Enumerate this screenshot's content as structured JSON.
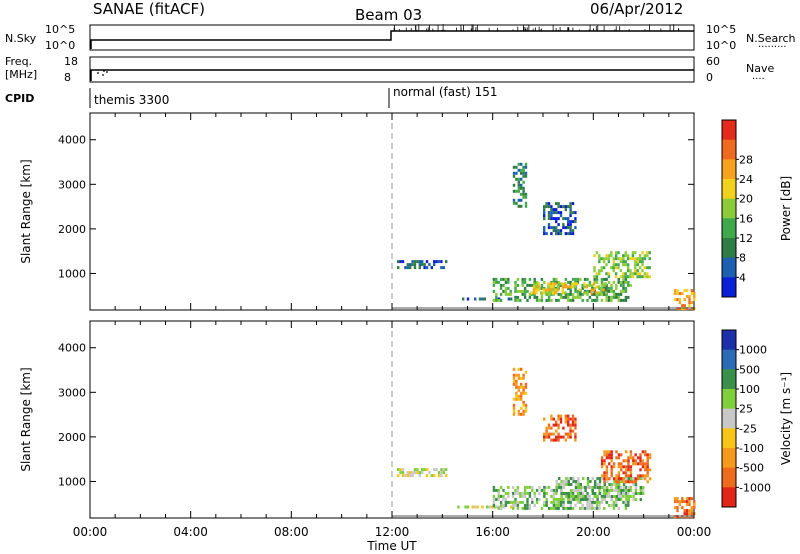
{
  "header": {
    "station": "SANAE (fitACF)",
    "beam": "Beam 03",
    "date": "06/Apr/2012"
  },
  "strips": {
    "nsky_label": "N.Sky",
    "nsearch_label": "N.Search",
    "nsearch_dots": "·········",
    "log_hi": "10^5",
    "log_lo": "10^0",
    "freq_label": "Freq.",
    "freq_unit": "[MHz]",
    "freq_hi": "18",
    "freq_lo": "8",
    "nave_label": "Nave",
    "nave_dots": "····",
    "nave_hi": "60",
    "nave_lo": "0",
    "cpid_label": "CPID",
    "cpid_modes": [
      {
        "name": "themis 3300",
        "start_hour": 0
      },
      {
        "name": "normal (fast) 151",
        "start_hour": 12
      }
    ]
  },
  "colors": {
    "power": [
      "#0a1fd6",
      "#1d5fb0",
      "#2e7d45",
      "#3fa84a",
      "#8ccc3a",
      "#f0d21c",
      "#f6a21c",
      "#ef6a1e",
      "#e42a1b"
    ],
    "velocity": [
      "#1a2fa8",
      "#2c6cb6",
      "#3a8f4a",
      "#7fcf3b",
      "#c8c8c8",
      "#f7c516",
      "#f59a1b",
      "#ee6a1c",
      "#e12519"
    ]
  },
  "chart_data": [
    {
      "type": "heatmap",
      "name": "power",
      "xlabel": "Time UT",
      "ylabel": "Slant Range [km]",
      "x_range_hours": [
        0,
        24
      ],
      "ylim": [
        180,
        4600
      ],
      "y_ticks": [
        "1000",
        "2000",
        "3000",
        "4000"
      ],
      "x_ticks": [
        "00:00",
        "04:00",
        "08:00",
        "12:00",
        "16:00",
        "20:00",
        "00:00"
      ],
      "colorbar_label": "Power [dB]",
      "colorbar_ticks": [
        "4",
        "8",
        "12",
        "16",
        "20",
        "24",
        "28"
      ],
      "echo_regions": [
        {
          "t0": 12.2,
          "t1": 14.2,
          "r0": 1150,
          "r1": 1300,
          "level": 1
        },
        {
          "t0": 14.4,
          "t1": 16.8,
          "r0": 400,
          "r1": 460,
          "level": 1
        },
        {
          "t0": 16.0,
          "t1": 21.5,
          "r0": 420,
          "r1": 900,
          "level": 3
        },
        {
          "t0": 17.5,
          "t1": 20.5,
          "r0": 550,
          "r1": 800,
          "level": 5
        },
        {
          "t0": 20.0,
          "t1": 22.2,
          "r0": 900,
          "r1": 1500,
          "level": 4
        },
        {
          "t0": 18.0,
          "t1": 19.3,
          "r0": 1900,
          "r1": 2600,
          "level": 1
        },
        {
          "t0": 16.8,
          "t1": 17.3,
          "r0": 2500,
          "r1": 3550,
          "level": 2
        },
        {
          "t0": 23.2,
          "t1": 24.0,
          "r0": 200,
          "r1": 650,
          "level": 6
        }
      ]
    },
    {
      "type": "heatmap",
      "name": "velocity",
      "xlabel": "Time UT",
      "ylabel": "Slant Range [km]",
      "x_range_hours": [
        0,
        24
      ],
      "ylim": [
        180,
        4600
      ],
      "y_ticks": [
        "1000",
        "2000",
        "3000",
        "4000"
      ],
      "x_ticks": [
        "00:00",
        "04:00",
        "08:00",
        "12:00",
        "16:00",
        "20:00",
        "00:00"
      ],
      "colorbar_label": "Velocity [m s⁻¹]",
      "colorbar_ticks": [
        "1000",
        "500",
        "100",
        "25",
        "-25",
        "-100",
        "-500",
        "-1000"
      ],
      "echo_regions": [
        {
          "t0": 12.2,
          "t1": 14.2,
          "r0": 1150,
          "r1": 1300,
          "level": 4
        },
        {
          "t0": 14.4,
          "t1": 16.8,
          "r0": 400,
          "r1": 460,
          "level": 4
        },
        {
          "t0": 16.0,
          "t1": 21.5,
          "r0": 420,
          "r1": 900,
          "level": 3
        },
        {
          "t0": 18.5,
          "t1": 22.0,
          "r0": 600,
          "r1": 1100,
          "level": 3
        },
        {
          "t0": 20.3,
          "t1": 22.3,
          "r0": 1000,
          "r1": 1700,
          "level": 7
        },
        {
          "t0": 18.0,
          "t1": 19.3,
          "r0": 1900,
          "r1": 2500,
          "level": 7
        },
        {
          "t0": 16.8,
          "t1": 17.3,
          "r0": 2500,
          "r1": 3550,
          "level": 6
        },
        {
          "t0": 23.2,
          "t1": 24.0,
          "r0": 200,
          "r1": 650,
          "level": 7
        }
      ]
    }
  ]
}
